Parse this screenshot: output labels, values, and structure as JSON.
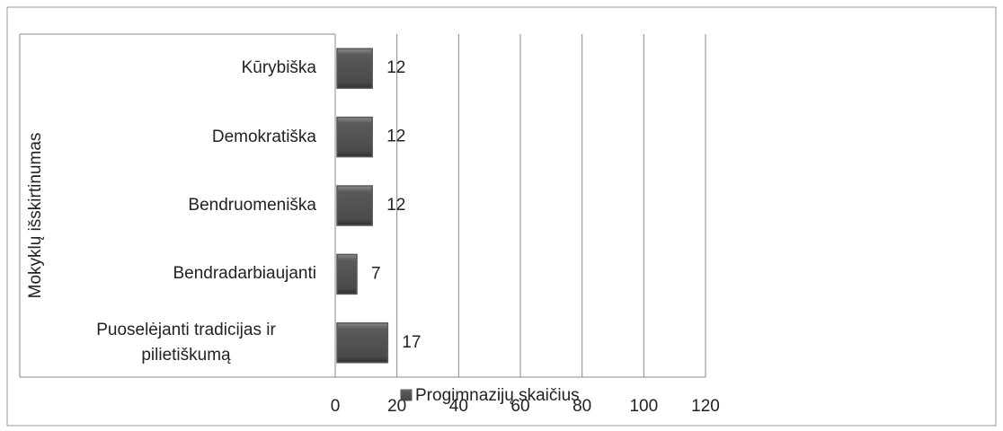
{
  "chart_data": {
    "type": "bar",
    "orientation": "horizontal",
    "y_axis_label": "Mokyklų išskirtinumas",
    "categories": [
      "Kūrybiška",
      "Demokratiška",
      "Bendruomeniška",
      "Bendradarbiaujanti",
      "Puoselėjanti tradicijas ir pilietiškumą"
    ],
    "series": [
      {
        "name": "Progimnazijų skaičius",
        "color": "#595959",
        "values": [
          12,
          12,
          12,
          7,
          17
        ]
      }
    ],
    "xlim": [
      0,
      120
    ],
    "xticks": [
      0,
      20,
      40,
      60,
      80,
      100,
      120
    ],
    "grid": true
  }
}
